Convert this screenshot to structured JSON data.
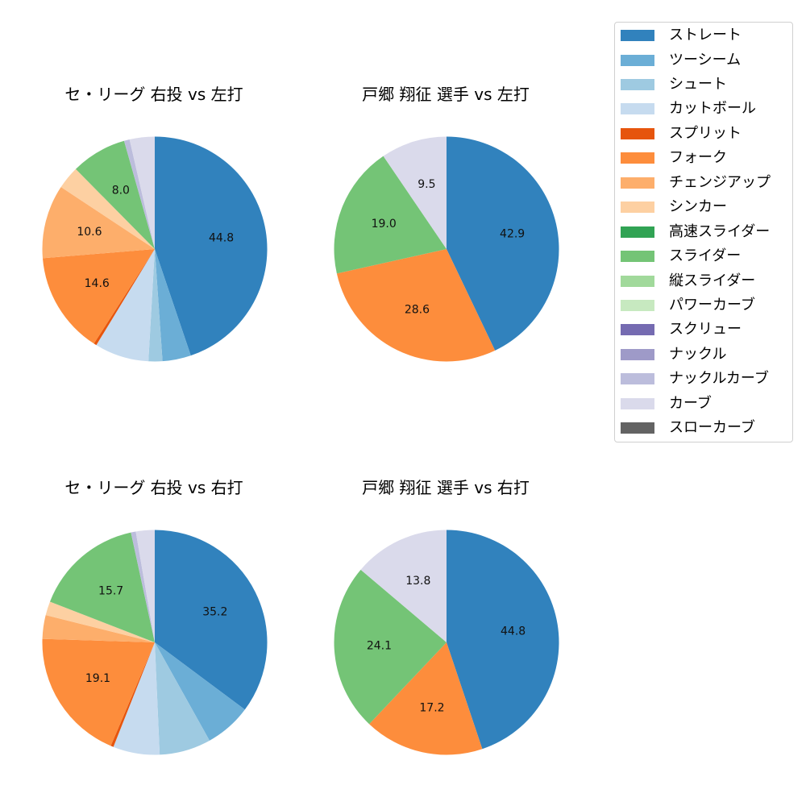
{
  "legend": {
    "items": [
      {
        "label": "ストレート",
        "color": "#3182bd"
      },
      {
        "label": "ツーシーム",
        "color": "#6baed6"
      },
      {
        "label": "シュート",
        "color": "#9ecae1"
      },
      {
        "label": "カットボール",
        "color": "#c6dbef"
      },
      {
        "label": "スプリット",
        "color": "#e6550d"
      },
      {
        "label": "フォーク",
        "color": "#fd8d3c"
      },
      {
        "label": "チェンジアップ",
        "color": "#fdae6b"
      },
      {
        "label": "シンカー",
        "color": "#fdd0a2"
      },
      {
        "label": "高速スライダー",
        "color": "#31a354"
      },
      {
        "label": "スライダー",
        "color": "#74c476"
      },
      {
        "label": "縦スライダー",
        "color": "#a1d99b"
      },
      {
        "label": "パワーカーブ",
        "color": "#c7e9c0"
      },
      {
        "label": "スクリュー",
        "color": "#756bb1"
      },
      {
        "label": "ナックル",
        "color": "#9e9ac8"
      },
      {
        "label": "ナックルカーブ",
        "color": "#bcbddc"
      },
      {
        "label": "カーブ",
        "color": "#dadaeb"
      },
      {
        "label": "スローカーブ",
        "color": "#636363"
      }
    ]
  },
  "chart_data": [
    {
      "type": "pie",
      "title": "セ・リーグ 右投 vs 左打",
      "start_angle": 90,
      "direction": "clockwise",
      "slices": [
        {
          "name": "ストレート",
          "value": 44.8,
          "label": "44.8"
        },
        {
          "name": "ツーシーム",
          "value": 4.1,
          "label": null
        },
        {
          "name": "シュート",
          "value": 2.0,
          "label": null
        },
        {
          "name": "カットボール",
          "value": 7.8,
          "label": null
        },
        {
          "name": "スプリット",
          "value": 0.4,
          "label": null
        },
        {
          "name": "フォーク",
          "value": 14.6,
          "label": "14.6"
        },
        {
          "name": "チェンジアップ",
          "value": 10.6,
          "label": "10.6"
        },
        {
          "name": "シンカー",
          "value": 3.3,
          "label": null
        },
        {
          "name": "スライダー",
          "value": 8.0,
          "label": "8.0"
        },
        {
          "name": "ナックルカーブ",
          "value": 0.8,
          "label": null
        },
        {
          "name": "カーブ",
          "value": 3.6,
          "label": null
        }
      ]
    },
    {
      "type": "pie",
      "title": "戸郷 翔征 選手 vs 左打",
      "start_angle": 90,
      "direction": "clockwise",
      "slices": [
        {
          "name": "ストレート",
          "value": 42.9,
          "label": "42.9"
        },
        {
          "name": "フォーク",
          "value": 28.6,
          "label": "28.6"
        },
        {
          "name": "スライダー",
          "value": 19.0,
          "label": "19.0"
        },
        {
          "name": "カーブ",
          "value": 9.5,
          "label": "9.5"
        }
      ]
    },
    {
      "type": "pie",
      "title": "セ・リーグ 右投 vs 右打",
      "start_angle": 90,
      "direction": "clockwise",
      "slices": [
        {
          "name": "ストレート",
          "value": 35.2,
          "label": "35.2"
        },
        {
          "name": "ツーシーム",
          "value": 6.7,
          "label": null
        },
        {
          "name": "シュート",
          "value": 7.4,
          "label": null
        },
        {
          "name": "カットボール",
          "value": 6.7,
          "label": null
        },
        {
          "name": "スプリット",
          "value": 0.4,
          "label": null
        },
        {
          "name": "フォーク",
          "value": 19.1,
          "label": "19.1"
        },
        {
          "name": "チェンジアップ",
          "value": 3.4,
          "label": null
        },
        {
          "name": "シンカー",
          "value": 2.0,
          "label": null
        },
        {
          "name": "スライダー",
          "value": 15.7,
          "label": "15.7"
        },
        {
          "name": "ナックルカーブ",
          "value": 0.7,
          "label": null
        },
        {
          "name": "カーブ",
          "value": 2.7,
          "label": null
        }
      ]
    },
    {
      "type": "pie",
      "title": "戸郷 翔征 選手 vs 右打",
      "start_angle": 90,
      "direction": "clockwise",
      "slices": [
        {
          "name": "ストレート",
          "value": 44.8,
          "label": "44.8"
        },
        {
          "name": "フォーク",
          "value": 17.2,
          "label": "17.2"
        },
        {
          "name": "スライダー",
          "value": 24.1,
          "label": "24.1"
        },
        {
          "name": "カーブ",
          "value": 13.8,
          "label": "13.8"
        }
      ]
    }
  ]
}
